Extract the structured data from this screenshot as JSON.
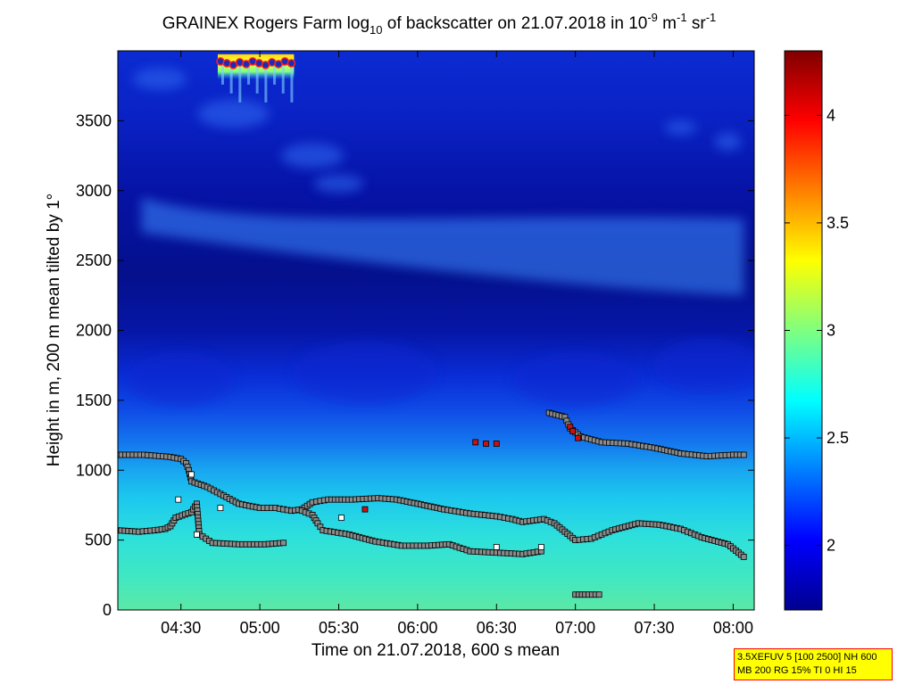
{
  "chart_data": {
    "type": "heatmap",
    "title": {
      "prefix": "GRAINEX Rogers Farm log",
      "sub": "10",
      "mid": " of backscatter on 21.07.2018 in 10",
      "sup1": "-9",
      "unit_m": " m",
      "sup2": "-1",
      "unit_sr": " sr",
      "sup3": "-1"
    },
    "xlabel": "Time on 21.07.2018, 600 s mean",
    "ylabel": "Height in m, 200 m mean tilted by 1°",
    "xlim": [
      "04:06",
      "08:08"
    ],
    "ylim": [
      0,
      4000
    ],
    "x_ticks": [
      {
        "label": "04:30",
        "min": 270
      },
      {
        "label": "05:00",
        "min": 300
      },
      {
        "label": "05:30",
        "min": 330
      },
      {
        "label": "06:00",
        "min": 360
      },
      {
        "label": "06:30",
        "min": 390
      },
      {
        "label": "07:00",
        "min": 420
      },
      {
        "label": "07:30",
        "min": 450
      },
      {
        "label": "08:00",
        "min": 480
      }
    ],
    "y_ticks": [
      0,
      500,
      1000,
      1500,
      2000,
      2500,
      3000,
      3500
    ],
    "colorbar": {
      "range": [
        1.7,
        4.3
      ],
      "ticks": [
        "2",
        "2.5",
        "3",
        "3.5",
        "4"
      ],
      "colormap": "jet"
    },
    "infobox": {
      "line1": "3.5XEFUV 5 [100 2500] NH 600",
      "line2": "MB 200 RG 15% TI 0 HI 15"
    },
    "layers": {
      "upper_cloud_layer_top_m": 2800,
      "upper_cloud_layer_bottom_m": 2450,
      "mixed_layer_top_m": 1100,
      "cloud_top_cluster": {
        "time_from": "04:44",
        "time_to": "05:13",
        "height_m": 3950,
        "log_backscatter": 4.3
      }
    },
    "series": [
      {
        "marker": "gray-square",
        "points": [
          [
            246,
            1110
          ],
          [
            256,
            1110
          ],
          [
            266,
            1095
          ],
          [
            270,
            1080
          ],
          [
            272,
            1050
          ],
          [
            273,
            1000
          ],
          [
            274,
            920
          ],
          [
            280,
            880
          ],
          [
            285,
            830
          ],
          [
            292,
            760
          ],
          [
            300,
            730
          ],
          [
            306,
            730
          ],
          [
            312,
            710
          ],
          [
            316,
            720
          ],
          [
            320,
            770
          ],
          [
            326,
            790
          ],
          [
            335,
            790
          ],
          [
            345,
            800
          ],
          [
            352,
            790
          ],
          [
            360,
            760
          ],
          [
            370,
            720
          ],
          [
            380,
            690
          ],
          [
            390,
            670
          ],
          [
            396,
            650
          ],
          [
            400,
            630
          ],
          [
            408,
            650
          ],
          [
            412,
            620
          ],
          [
            416,
            560
          ],
          [
            420,
            500
          ],
          [
            426,
            510
          ],
          [
            434,
            570
          ],
          [
            444,
            620
          ],
          [
            452,
            610
          ],
          [
            460,
            580
          ],
          [
            468,
            520
          ],
          [
            478,
            470
          ],
          [
            484,
            380
          ]
        ]
      },
      {
        "marker": "gray-square",
        "points": [
          [
            246,
            570
          ],
          [
            254,
            560
          ],
          [
            260,
            570
          ],
          [
            264,
            580
          ],
          [
            266,
            600
          ],
          [
            268,
            660
          ],
          [
            274,
            700
          ],
          [
            276,
            760
          ],
          [
            277,
            540
          ],
          [
            282,
            480
          ],
          [
            292,
            470
          ],
          [
            302,
            470
          ],
          [
            309,
            480
          ]
        ]
      },
      {
        "marker": "gray-square",
        "points": [
          [
            316,
            710
          ],
          [
            320,
            680
          ],
          [
            322,
            620
          ],
          [
            324,
            570
          ],
          [
            334,
            540
          ],
          [
            344,
            490
          ],
          [
            354,
            460
          ],
          [
            364,
            460
          ],
          [
            372,
            470
          ],
          [
            380,
            420
          ],
          [
            390,
            410
          ],
          [
            400,
            400
          ],
          [
            407,
            420
          ]
        ]
      },
      {
        "marker": "gray-square",
        "points": [
          [
            410,
            1410
          ],
          [
            416,
            1380
          ],
          [
            418,
            1300
          ],
          [
            422,
            1240
          ],
          [
            430,
            1200
          ],
          [
            440,
            1190
          ],
          [
            450,
            1160
          ],
          [
            460,
            1120
          ],
          [
            470,
            1100
          ],
          [
            480,
            1110
          ],
          [
            484,
            1110
          ]
        ]
      },
      {
        "marker": "gray-square",
        "points": [
          [
            420,
            110
          ],
          [
            425,
            110
          ],
          [
            429,
            110
          ]
        ]
      },
      {
        "marker": "red-square",
        "points": [
          [
            382,
            1200
          ],
          [
            386,
            1190
          ],
          [
            390,
            1190
          ],
          [
            340,
            720
          ],
          [
            418,
            1310
          ],
          [
            419,
            1280
          ],
          [
            421,
            1230
          ]
        ]
      },
      {
        "marker": "white-square",
        "points": [
          [
            285,
            730
          ],
          [
            331,
            660
          ],
          [
            390,
            450
          ],
          [
            407,
            450
          ],
          [
            269,
            790
          ],
          [
            276,
            540
          ],
          [
            274,
            970
          ]
        ]
      }
    ]
  }
}
